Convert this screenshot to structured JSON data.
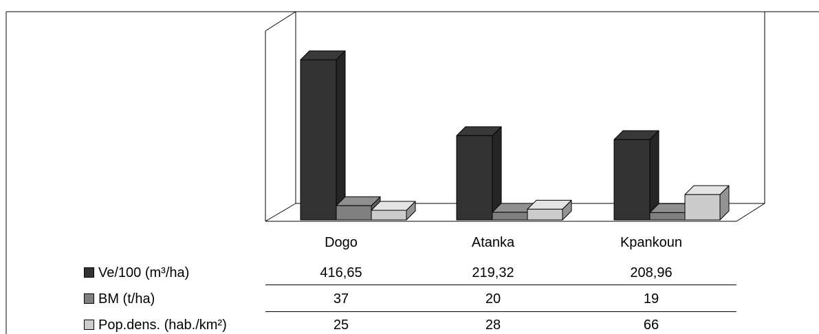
{
  "colors": {
    "series_1": "#333333",
    "series_2": "#808080",
    "series_3": "#cccccc",
    "frame": "#000000",
    "background": "#ffffff"
  },
  "chart_data": {
    "type": "bar",
    "categories": [
      "Dogo",
      "Atanka",
      "Kpankoun"
    ],
    "series": [
      {
        "name": "Ve/100 (m³/ha)",
        "values": [
          "416,65",
          "219,32",
          "208,96"
        ],
        "numeric": [
          416.65,
          219.32,
          208.96
        ],
        "color": "#333333"
      },
      {
        "name": "BM (t/ha)",
        "values": [
          "37",
          "20",
          "19"
        ],
        "numeric": [
          37,
          20,
          19
        ],
        "color": "#808080"
      },
      {
        "name": "Pop.dens. (hab./km²)",
        "values": [
          "25",
          "28",
          "66"
        ],
        "numeric": [
          25,
          28,
          66
        ],
        "color": "#cccccc"
      }
    ],
    "ylim": [
      0,
      450
    ],
    "grid": false,
    "legend": "data-table-below"
  }
}
